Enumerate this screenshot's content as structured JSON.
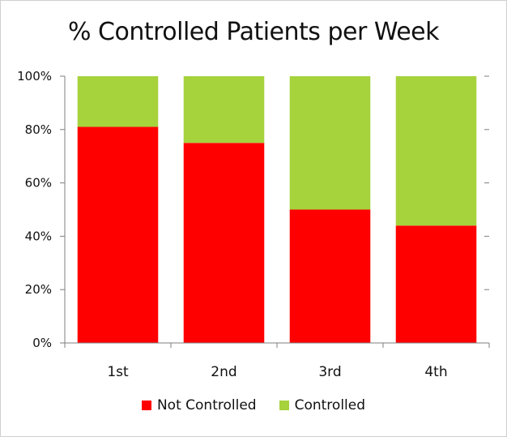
{
  "chart_data": {
    "type": "bar",
    "stacked": true,
    "title": "% Controlled Patients per Week",
    "categories": [
      "1st",
      "2nd",
      "3rd",
      "4th"
    ],
    "series": [
      {
        "name": "Not Controlled",
        "color": "#ff0000",
        "values": [
          81,
          75,
          50,
          44
        ]
      },
      {
        "name": "Controlled",
        "color": "#a6d23c",
        "values": [
          19,
          25,
          50,
          56
        ]
      }
    ],
    "y_ticks": [
      "0%",
      "20%",
      "40%",
      "60%",
      "80%",
      "100%"
    ],
    "ylim": [
      0,
      100
    ],
    "grid": false,
    "legend_position": "bottom"
  }
}
